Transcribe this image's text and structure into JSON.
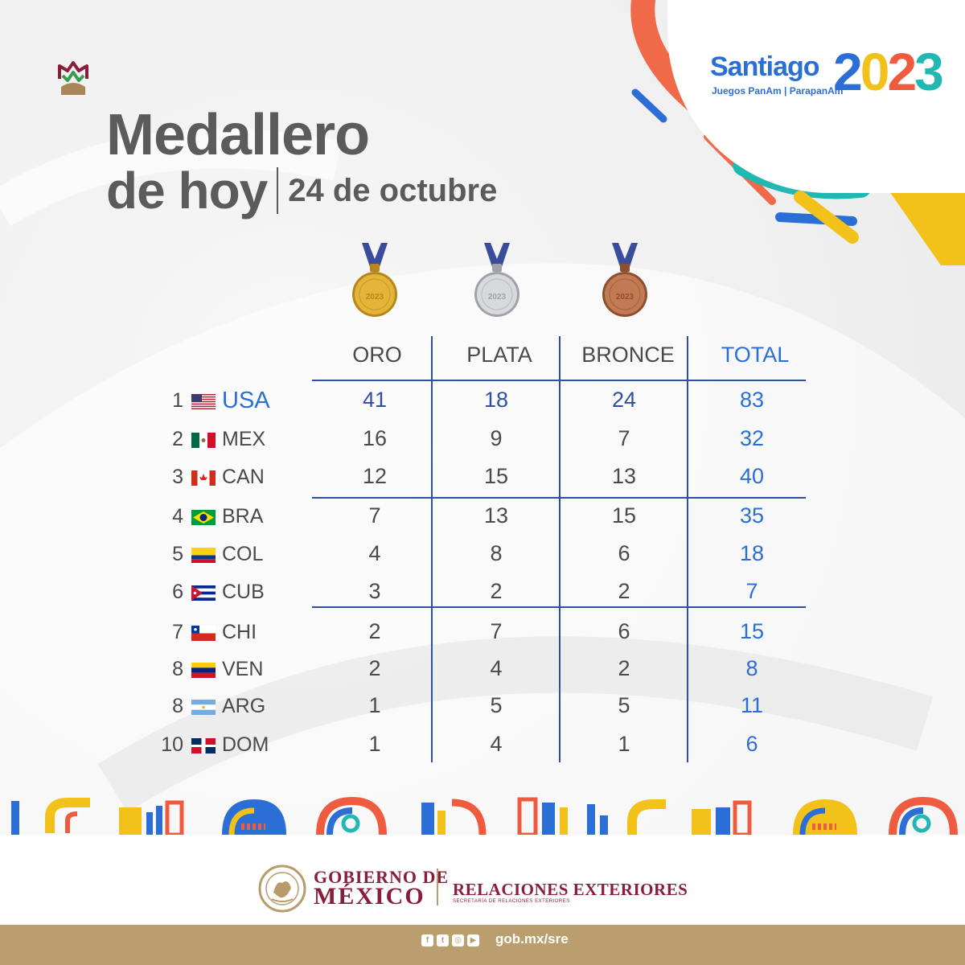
{
  "title": {
    "line1": "Medallero",
    "line2": "de hoy",
    "date": "24 de octubre"
  },
  "brand": {
    "name": "Santiago",
    "year_digits": [
      "2",
      "0",
      "2",
      "3"
    ],
    "subtitle": "Juegos PanAm | ParapanAm"
  },
  "medals": [
    {
      "name": "gold-medal",
      "color": "#e2b437",
      "shade": "#b8861c",
      "ribbon": "#3a4d9c",
      "label": "2023"
    },
    {
      "name": "silver-medal",
      "color": "#d7d9dc",
      "shade": "#9fa3a8",
      "ribbon": "#3a4d9c",
      "label": "2023"
    },
    {
      "name": "bronze-medal",
      "color": "#c27a52",
      "shade": "#8e4f31",
      "ribbon": "#3a4d9c",
      "label": "2023"
    }
  ],
  "table": {
    "headers": {
      "gold": "ORO",
      "silver": "PLATA",
      "bronze": "BRONCE",
      "total": "TOTAL"
    },
    "rows": [
      {
        "rank": "1",
        "country": "USA",
        "flag": "usa",
        "gold": "41",
        "silver": "18",
        "bronze": "24",
        "total": "83"
      },
      {
        "rank": "2",
        "country": "MEX",
        "flag": "mex",
        "gold": "16",
        "silver": "9",
        "bronze": "7",
        "total": "32"
      },
      {
        "rank": "3",
        "country": "CAN",
        "flag": "can",
        "gold": "12",
        "silver": "15",
        "bronze": "13",
        "total": "40"
      },
      {
        "rank": "4",
        "country": "BRA",
        "flag": "bra",
        "gold": "7",
        "silver": "13",
        "bronze": "15",
        "total": "35"
      },
      {
        "rank": "5",
        "country": "COL",
        "flag": "col",
        "gold": "4",
        "silver": "8",
        "bronze": "6",
        "total": "18"
      },
      {
        "rank": "6",
        "country": "CUB",
        "flag": "cub",
        "gold": "3",
        "silver": "2",
        "bronze": "2",
        "total": "7"
      },
      {
        "rank": "7",
        "country": "CHI",
        "flag": "chi",
        "gold": "2",
        "silver": "7",
        "bronze": "6",
        "total": "15"
      },
      {
        "rank": "8",
        "country": "VEN",
        "flag": "ven",
        "gold": "2",
        "silver": "4",
        "bronze": "2",
        "total": "8"
      },
      {
        "rank": "8",
        "country": "ARG",
        "flag": "arg",
        "gold": "1",
        "silver": "5",
        "bronze": "5",
        "total": "11"
      },
      {
        "rank": "10",
        "country": "DOM",
        "flag": "dom",
        "gold": "1",
        "silver": "4",
        "bronze": "1",
        "total": "6"
      }
    ]
  },
  "footer": {
    "gov_line1": "GOBIERNO DE",
    "gov_line2": "MÉXICO",
    "sre_line1": "RELACIONES EXTERIORES",
    "sre_line2": "SECRETARÍA DE RELACIONES EXTERIORES",
    "social_icons": [
      "facebook-icon",
      "twitter-icon",
      "instagram-icon",
      "youtube-icon"
    ],
    "url": "gob.mx/sre"
  },
  "colors": {
    "accent_blue": "#2b6fd6",
    "navy": "#2f4f9f",
    "gov_maroon": "#8a1d3b",
    "gold_bar": "#bb9e6e",
    "text_gray": "#4a4a4a"
  }
}
